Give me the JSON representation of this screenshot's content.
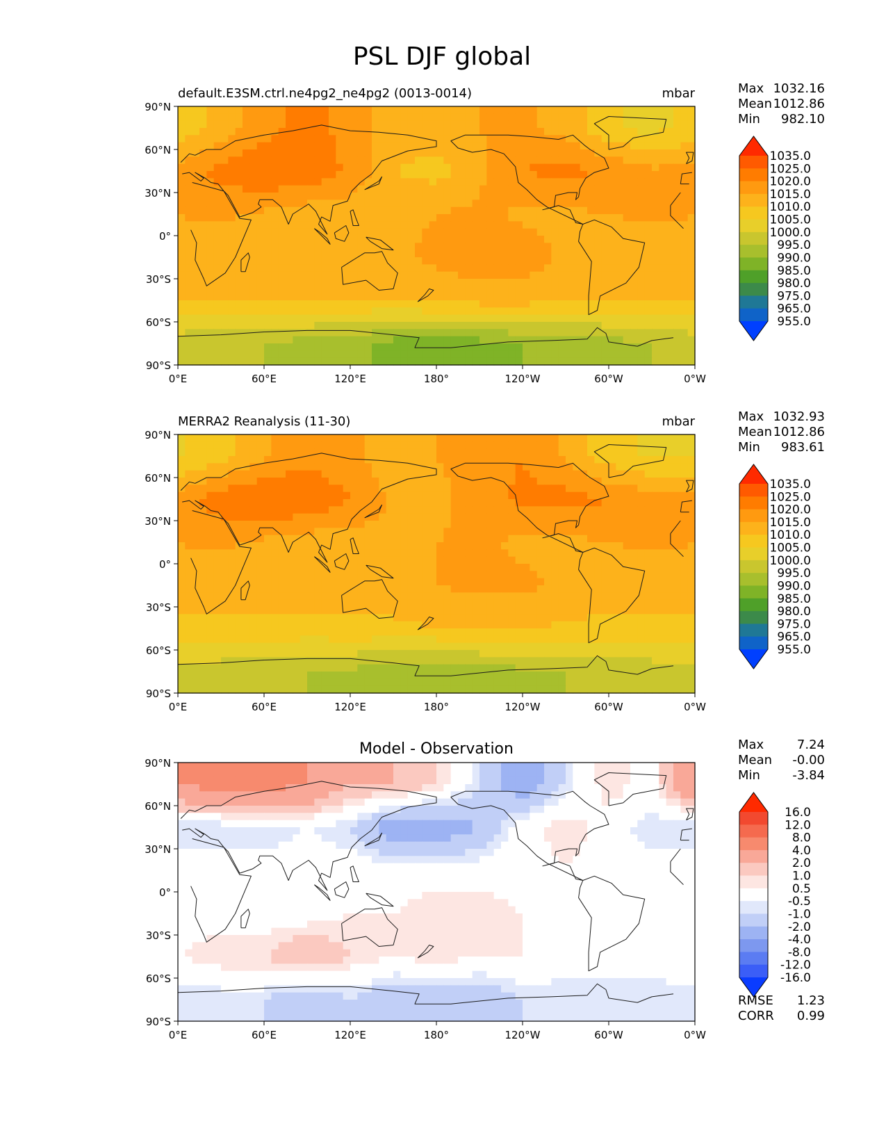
{
  "title": "PSL DJF global",
  "tick_labels": {
    "lat": [
      "90°N",
      "60°N",
      "30°N",
      "0°",
      "30°S",
      "60°S",
      "90°S"
    ],
    "lon": [
      "0°E",
      "60°E",
      "120°E",
      "180°",
      "120°W",
      "60°W",
      "0°W"
    ]
  },
  "stat_labels": {
    "max": "Max",
    "mean": "Mean",
    "min": "Min",
    "rmse": "RMSE",
    "corr": "CORR"
  },
  "panels": [
    {
      "left_title": "default.E3SM.ctrl.ne4pg2_ne4pg2 (0013-0014)",
      "center_title": "",
      "units": "mbar",
      "stats": {
        "max": "1032.16",
        "mean": "1012.86",
        "min": "982.10"
      },
      "colorbar": {
        "labels": [
          "1035.0",
          "1025.0",
          "1020.0",
          "1015.0",
          "1010.0",
          "1005.0",
          "1000.0",
          "995.0",
          "990.0",
          "985.0",
          "980.0",
          "975.0",
          "965.0",
          "955.0"
        ],
        "colors": [
          "#ff2a00",
          "#ff5a00",
          "#ff7c00",
          "#ff9a10",
          "#fdb21b",
          "#f6c81f",
          "#e8cf2a",
          "#c9c62e",
          "#a8bf2d",
          "#7fb327",
          "#4fa029",
          "#3c8a4a",
          "#1f7896",
          "#0f63c8",
          "#0040ff"
        ]
      }
    },
    {
      "left_title": "MERRA2 Reanalysis (11-30)",
      "center_title": "",
      "units": "mbar",
      "stats": {
        "max": "1032.93",
        "mean": "1012.86",
        "min": "983.61"
      },
      "colorbar": {
        "labels": [
          "1035.0",
          "1025.0",
          "1020.0",
          "1015.0",
          "1010.0",
          "1005.0",
          "1000.0",
          "995.0",
          "990.0",
          "985.0",
          "980.0",
          "975.0",
          "965.0",
          "955.0"
        ],
        "colors": [
          "#ff2a00",
          "#ff5a00",
          "#ff7c00",
          "#ff9a10",
          "#fdb21b",
          "#f6c81f",
          "#e8cf2a",
          "#c9c62e",
          "#a8bf2d",
          "#7fb327",
          "#4fa029",
          "#3c8a4a",
          "#1f7896",
          "#0f63c8",
          "#0040ff"
        ]
      }
    },
    {
      "left_title": "",
      "center_title": "Model - Observation",
      "units": "",
      "stats": {
        "max": "7.24",
        "mean": "-0.00",
        "min": "-3.84",
        "rmse": "1.23",
        "corr": "0.99"
      },
      "colorbar": {
        "labels": [
          "16.0",
          "12.0",
          "8.0",
          "4.0",
          "2.0",
          "1.0",
          "0.5",
          "-0.5",
          "-1.0",
          "-2.0",
          "-4.0",
          "-8.0",
          "-12.0",
          "-16.0"
        ],
        "colors": [
          "#ff2a00",
          "#f2492f",
          "#f56a4e",
          "#f78a6e",
          "#f9a898",
          "#fbc9c0",
          "#fde6e2",
          "#ffffff",
          "#e1e8fb",
          "#c1cff7",
          "#9db3f3",
          "#7d98ef",
          "#5b7cf2",
          "#3b5ef7",
          "#0a3cff"
        ]
      }
    }
  ],
  "chart_data": [
    {
      "type": "heatmap",
      "title": "default.E3SM.ctrl.ne4pg2_ne4pg2 (0013-0014)",
      "units": "mbar",
      "x_ticks": [
        "0°E",
        "60°E",
        "120°E",
        "180°",
        "120°W",
        "60°W",
        "0°W"
      ],
      "y_ticks": [
        "90°N",
        "60°N",
        "30°N",
        "0°",
        "30°S",
        "60°S",
        "90°S"
      ],
      "xlim": [
        0,
        360
      ],
      "ylim": [
        -90,
        90
      ],
      "lat": [
        75,
        45,
        15,
        -15,
        -45,
        -75
      ],
      "lon": [
        0,
        30,
        60,
        90,
        120,
        150,
        180,
        210,
        240,
        270,
        300,
        330
      ],
      "values": [
        [
          1007,
          1012,
          1018,
          1022,
          1018,
          1012,
          1014,
          1015,
          1016,
          1013,
          1006,
          1003
        ],
        [
          1016,
          1022,
          1025,
          1024,
          1019,
          1010,
          1008,
          1014,
          1020,
          1022,
          1019,
          1016
        ],
        [
          1015,
          1016,
          1014,
          1012,
          1012,
          1014,
          1015,
          1016,
          1014,
          1014,
          1015,
          1016
        ],
        [
          1013,
          1012,
          1012,
          1014,
          1012,
          1014,
          1016,
          1018,
          1018,
          1014,
          1012,
          1012
        ],
        [
          1010,
          1010,
          1010,
          1010,
          1010,
          1010,
          1012,
          1012,
          1012,
          1010,
          1010,
          1010
        ],
        [
          997,
          995,
          995,
          993,
          992,
          988,
          985,
          988,
          990,
          992,
          993,
          995
        ]
      ],
      "stats": {
        "max": 1032.16,
        "mean": 1012.86,
        "min": 982.1
      }
    },
    {
      "type": "heatmap",
      "title": "MERRA2 Reanalysis (11-30)",
      "units": "mbar",
      "x_ticks": [
        "0°E",
        "60°E",
        "120°E",
        "180°",
        "120°W",
        "60°W",
        "0°W"
      ],
      "y_ticks": [
        "90°N",
        "60°N",
        "30°N",
        "0°",
        "30°S",
        "60°S",
        "90°S"
      ],
      "xlim": [
        0,
        360
      ],
      "ylim": [
        -90,
        90
      ],
      "lat": [
        75,
        45,
        15,
        -15,
        -45,
        -75
      ],
      "lon": [
        0,
        30,
        60,
        90,
        120,
        150,
        180,
        210,
        240,
        270,
        300,
        330
      ],
      "values": [
        [
          1004,
          1008,
          1014,
          1018,
          1016,
          1012,
          1015,
          1018,
          1020,
          1014,
          1007,
          1004
        ],
        [
          1017,
          1023,
          1026,
          1025,
          1020,
          1014,
          1013,
          1018,
          1021,
          1022,
          1020,
          1017
        ],
        [
          1015,
          1016,
          1014,
          1012,
          1012,
          1014,
          1015,
          1016,
          1014,
          1014,
          1015,
          1016
        ],
        [
          1013,
          1012,
          1012,
          1014,
          1012,
          1013,
          1015,
          1016,
          1016,
          1014,
          1012,
          1012
        ],
        [
          1009,
          1009,
          1009,
          1008,
          1009,
          1009,
          1010,
          1011,
          1011,
          1009,
          1009,
          1009
        ],
        [
          998,
          997,
          996,
          995,
          994,
          992,
          990,
          992,
          994,
          995,
          996,
          997
        ]
      ],
      "stats": {
        "max": 1032.93,
        "mean": 1012.86,
        "min": 983.61
      }
    },
    {
      "type": "heatmap",
      "title": "Model - Observation",
      "units": "",
      "x_ticks": [
        "0°E",
        "60°E",
        "120°E",
        "180°",
        "120°W",
        "60°W",
        "0°W"
      ],
      "y_ticks": [
        "90°N",
        "60°N",
        "30°N",
        "0°",
        "30°S",
        "60°S",
        "90°S"
      ],
      "xlim": [
        0,
        360
      ],
      "ylim": [
        -90,
        90
      ],
      "lat": [
        75,
        45,
        15,
        -15,
        -45,
        -75
      ],
      "lon": [
        0,
        30,
        60,
        90,
        120,
        150,
        180,
        210,
        240,
        270,
        300,
        330
      ],
      "values": [
        [
          4,
          5,
          5,
          4,
          2,
          2,
          1,
          -1,
          -3,
          -1,
          1,
          0
        ],
        [
          -1,
          -1,
          -1,
          -0.5,
          -1,
          -3,
          -3,
          -2,
          0,
          1,
          0,
          -1
        ],
        [
          0,
          0,
          0,
          0,
          0,
          0,
          0,
          0,
          0,
          0.5,
          0,
          0
        ],
        [
          0,
          0,
          0,
          0,
          0.5,
          0.5,
          1,
          1,
          0.5,
          0,
          0,
          0
        ],
        [
          0.5,
          1,
          1,
          2,
          1,
          0.5,
          1,
          0.5,
          0.5,
          0,
          0,
          0
        ],
        [
          -1,
          -1,
          -1,
          -2,
          -1,
          -2,
          -2,
          -2,
          -1,
          -1,
          -1,
          -1
        ]
      ],
      "stats": {
        "max": 7.24,
        "mean": -0.0,
        "min": -3.84,
        "rmse": 1.23,
        "corr": 0.99
      }
    }
  ]
}
